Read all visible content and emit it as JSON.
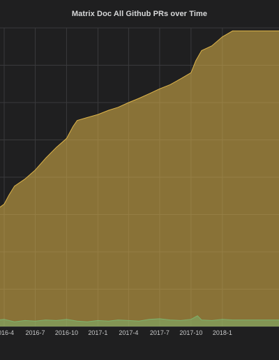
{
  "panel": {
    "title": "Matrix Doc All Github PRs over Time"
  },
  "chart_data": {
    "type": "area",
    "title": "Matrix Doc All Github PRs over Time",
    "x_ticks": [
      "2016-4",
      "2016-7",
      "2016-10",
      "2017-1",
      "2017-4",
      "2017-7",
      "2017-10",
      "2018-1"
    ],
    "grid": true,
    "colors": {
      "total": "#e0b64a",
      "open": "#7eb26d"
    },
    "series": [
      {
        "x": [
          "2016-03-01",
          "2016-03-20",
          "2016-04-01",
          "2016-04-15",
          "2016-05-01",
          "2016-06-01",
          "2016-07-01",
          "2016-08-01",
          "2016-09-01",
          "2016-10-01",
          "2016-10-20",
          "2016-11-01",
          "2016-12-01",
          "2017-01-01",
          "2017-02-01",
          "2017-03-01",
          "2017-04-01",
          "2017-05-01",
          "2017-06-01",
          "2017-07-01",
          "2017-08-01",
          "2017-09-01",
          "2017-10-01",
          "2017-10-15",
          "2017-11-01",
          "2017-12-01",
          "2018-01-01",
          "2018-01-31"
        ],
        "values": [
          190,
          200,
          205,
          220,
          235,
          247,
          262,
          282,
          300,
          315,
          335,
          345,
          350,
          355,
          362,
          367,
          375,
          382,
          390,
          398,
          405,
          415,
          425,
          445,
          462,
          470,
          485,
          495
        ]
      },
      {
        "x": [
          "2016-03-01",
          "2016-04-01",
          "2016-05-01",
          "2016-06-01",
          "2016-07-01",
          "2016-08-01",
          "2016-09-01",
          "2016-10-01",
          "2016-11-01",
          "2016-12-01",
          "2017-01-01",
          "2017-02-01",
          "2017-03-01",
          "2017-04-01",
          "2017-05-01",
          "2017-06-01",
          "2017-07-01",
          "2017-08-01",
          "2017-09-01",
          "2017-10-01",
          "2017-10-20",
          "2017-11-01",
          "2017-12-01",
          "2018-01-01",
          "2018-01-31"
        ],
        "values": [
          10,
          12,
          8,
          10,
          9,
          11,
          10,
          12,
          9,
          8,
          10,
          9,
          11,
          10,
          9,
          12,
          13,
          11,
          10,
          12,
          18,
          11,
          10,
          12,
          11
        ]
      }
    ]
  }
}
